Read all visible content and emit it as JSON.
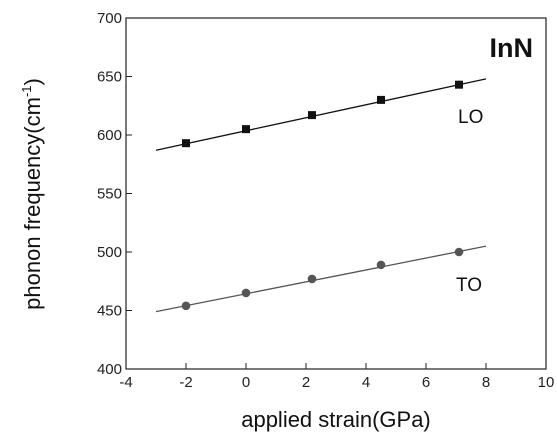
{
  "chart_data": {
    "type": "scatter",
    "title": "InN",
    "xlabel": "applied strain(GPa)",
    "ylabel": "phonon frequency(cm",
    "ylabel_superscript": "-1",
    "ylabel_suffix": ")",
    "xlim": [
      -4,
      10
    ],
    "ylim": [
      400,
      700
    ],
    "x_ticks": [
      -4,
      -2,
      0,
      2,
      4,
      6,
      8,
      10
    ],
    "y_ticks": [
      400,
      450,
      500,
      550,
      600,
      650,
      700
    ],
    "x_tick_labels": [
      "-4",
      "-2",
      "0",
      "2",
      "4",
      "6",
      "8",
      "10"
    ],
    "y_tick_labels": [
      "400",
      "450",
      "500",
      "550",
      "600",
      "650",
      "700"
    ],
    "grid": false,
    "series": [
      {
        "name": "LO",
        "marker": "square",
        "color": "#111111",
        "x": [
          -2.0,
          0.0,
          2.2,
          4.5,
          7.1
        ],
        "y": [
          593,
          605,
          617,
          630,
          643
        ],
        "fit": {
          "x": [
            -3.0,
            8.0
          ],
          "y": [
            587,
            648
          ]
        }
      },
      {
        "name": "TO",
        "marker": "circle",
        "color": "#555555",
        "x": [
          -2.0,
          0.0,
          2.2,
          4.5,
          7.1
        ],
        "y": [
          454,
          465,
          477,
          489,
          500
        ],
        "fit": {
          "x": [
            -3.0,
            8.0
          ],
          "y": [
            449,
            505
          ]
        }
      }
    ]
  }
}
